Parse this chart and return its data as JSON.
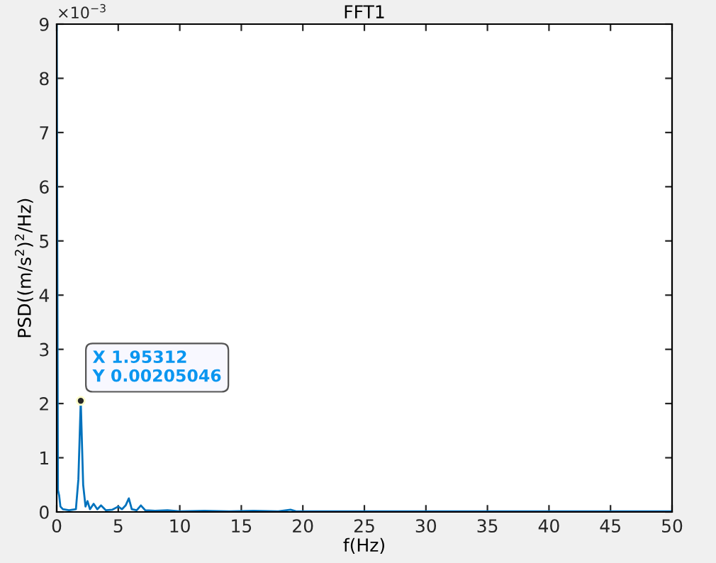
{
  "chart_data": {
    "type": "line",
    "title": "FFT1",
    "xlabel": "f(Hz)",
    "ylabel": "PSD((m/s$^{2}$)$^{2}$/Hz)",
    "series": [
      {
        "color": "#0072bd",
        "x": [
          0,
          0.1,
          0.2,
          0.3,
          0.5,
          1.0,
          1.56,
          1.76,
          1.95312,
          2.15,
          2.34,
          2.5,
          2.7,
          3.0,
          3.3,
          3.6,
          4.0,
          4.5,
          5.0,
          5.3,
          5.6,
          5.86,
          6.1,
          6.5,
          6.84,
          7.2,
          8,
          9,
          10,
          12,
          14,
          16,
          18,
          19,
          19.5,
          22,
          25,
          30,
          35,
          40,
          45,
          50
        ],
        "values": [
          9,
          0.4,
          0.3,
          0.1,
          0.05,
          0.03,
          0.05,
          0.6,
          2.05,
          0.5,
          0.1,
          0.2,
          0.05,
          0.15,
          0.05,
          0.12,
          0.03,
          0.04,
          0.1,
          0.05,
          0.12,
          0.25,
          0.05,
          0.03,
          0.12,
          0.03,
          0.02,
          0.03,
          0.01,
          0.02,
          0.01,
          0.02,
          0.01,
          0.04,
          0.01,
          0.01,
          0.01,
          0.01,
          0.01,
          0.01,
          0.01,
          0.01
        ]
      }
    ],
    "xlim": [
      0,
      50
    ],
    "xticks": [
      0,
      5,
      10,
      15,
      20,
      25,
      30,
      35,
      40,
      45,
      50
    ],
    "ylim": [
      0,
      9
    ],
    "yticks": [
      0,
      1,
      2,
      3,
      4,
      5,
      6,
      7,
      8,
      9
    ],
    "annotations": [
      "×10$^{−3}$",
      {
        "text": "X 1.95312\nY 0.00205046",
        "x": 1.95312,
        "y": 2.05
      }
    ],
    "grid": false,
    "marker": "none",
    "line_style": "solid"
  }
}
